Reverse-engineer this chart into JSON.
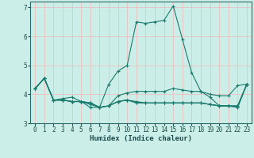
{
  "xlabel": "Humidex (Indice chaleur)",
  "xlim": [
    -0.5,
    23.5
  ],
  "ylim": [
    3,
    7.2
  ],
  "xticks": [
    0,
    1,
    2,
    3,
    4,
    5,
    6,
    7,
    8,
    9,
    10,
    11,
    12,
    13,
    14,
    15,
    16,
    17,
    18,
    19,
    20,
    21,
    22,
    23
  ],
  "yticks": [
    3,
    4,
    5,
    6,
    7
  ],
  "bg_color": "#cceee8",
  "line_color": "#1a7a6e",
  "grid_color_v": "#f0b8b8",
  "grid_color_h": "#f0b8b8",
  "lines": [
    {
      "x": [
        0,
        1,
        2,
        3,
        4,
        5,
        6,
        7,
        8,
        9,
        10,
        11,
        12,
        13,
        14,
        15,
        16,
        17,
        18,
        19,
        20,
        21,
        22,
        23
      ],
      "y": [
        4.2,
        4.55,
        3.8,
        3.85,
        3.9,
        3.75,
        3.55,
        3.55,
        4.35,
        4.8,
        5.0,
        6.5,
        6.45,
        6.5,
        6.55,
        7.05,
        5.9,
        4.75,
        4.1,
        3.9,
        3.6,
        3.6,
        3.55,
        4.35
      ]
    },
    {
      "x": [
        0,
        1,
        2,
        3,
        4,
        5,
        6,
        7,
        8,
        9,
        10,
        11,
        12,
        13,
        14,
        15,
        16,
        17,
        18,
        19,
        20,
        21,
        22,
        23
      ],
      "y": [
        4.2,
        4.55,
        3.8,
        3.8,
        3.75,
        3.75,
        3.7,
        3.55,
        3.6,
        3.95,
        4.05,
        4.1,
        4.1,
        4.1,
        4.1,
        4.2,
        4.15,
        4.1,
        4.1,
        4.0,
        3.95,
        3.95,
        4.3,
        4.35
      ]
    },
    {
      "x": [
        0,
        1,
        2,
        3,
        4,
        5,
        6,
        7,
        8,
        9,
        10,
        11,
        12,
        13,
        14,
        15,
        16,
        17,
        18,
        19,
        20,
        21,
        22,
        23
      ],
      "y": [
        4.2,
        4.55,
        3.8,
        3.8,
        3.75,
        3.75,
        3.7,
        3.55,
        3.6,
        3.75,
        3.8,
        3.75,
        3.7,
        3.7,
        3.7,
        3.7,
        3.7,
        3.7,
        3.7,
        3.65,
        3.6,
        3.6,
        3.6,
        4.35
      ]
    },
    {
      "x": [
        0,
        1,
        2,
        3,
        4,
        5,
        6,
        7,
        8,
        9,
        10,
        11,
        12,
        13,
        14,
        15,
        16,
        17,
        18,
        19,
        20,
        21,
        22,
        23
      ],
      "y": [
        4.2,
        4.55,
        3.8,
        3.8,
        3.75,
        3.75,
        3.7,
        3.55,
        3.6,
        3.75,
        3.8,
        3.72,
        3.7,
        3.7,
        3.7,
        3.7,
        3.7,
        3.7,
        3.7,
        3.65,
        3.6,
        3.6,
        3.6,
        4.35
      ]
    },
    {
      "x": [
        0,
        1,
        2,
        3,
        4,
        5,
        6,
        7,
        8,
        9,
        10,
        11,
        12,
        13,
        14,
        15,
        16,
        17,
        18,
        19,
        20,
        21,
        22,
        23
      ],
      "y": [
        4.2,
        4.55,
        3.8,
        3.8,
        3.75,
        3.75,
        3.65,
        3.55,
        3.6,
        3.75,
        3.8,
        3.7,
        3.7,
        3.7,
        3.7,
        3.7,
        3.7,
        3.7,
        3.7,
        3.65,
        3.6,
        3.6,
        3.55,
        4.35
      ]
    }
  ]
}
